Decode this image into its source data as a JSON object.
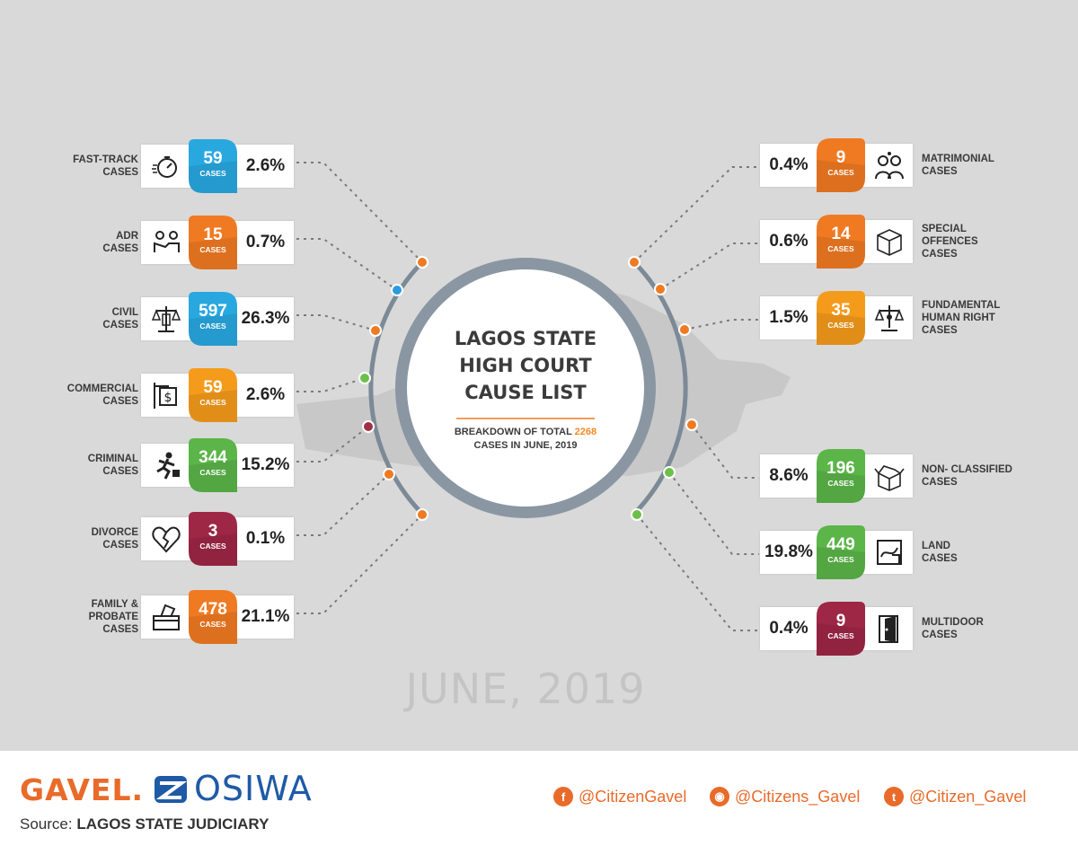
{
  "title": "LAGOS STATE HIGH COURT CAUSE LIST",
  "title_lines": [
    "LAGOS STATE",
    "HIGH COURT",
    "CAUSE LIST"
  ],
  "subtitle_prefix": "BREAKDOWN OF TOTAL ",
  "subtitle_total": "2268",
  "subtitle_suffix": "CASES IN JUNE, 2019",
  "month_label": "JUNE, 2019",
  "cases_unit": "CASES",
  "colors": {
    "blue": "#29a8e0",
    "orange": "#f07a22",
    "amber": "#f59b1c",
    "green": "#5bb548",
    "maroon": "#9e2746",
    "dot_orange": "#f07a22",
    "dot_blue": "#2d9be0",
    "dot_green": "#6cc04a",
    "dot_maroon": "#a03048"
  },
  "chart_data": {
    "type": "table",
    "title": "LAGOS STATE HIGH COURT CAUSE LIST",
    "subtitle": "BREAKDOWN OF TOTAL 2268 CASES IN JUNE, 2019",
    "total": 2268,
    "left": [
      {
        "label": "FAST-TRACK\nCASES",
        "value": 59,
        "percent": "2.6%",
        "color": "blue",
        "icon": "stopwatch-icon",
        "dot": "dot_orange"
      },
      {
        "label": "ADR\nCASES",
        "value": 15,
        "percent": "0.7%",
        "color": "orange",
        "icon": "handshake-icon",
        "dot": "dot_blue"
      },
      {
        "label": "CIVIL\nCASES",
        "value": 597,
        "percent": "26.3%",
        "color": "blue",
        "icon": "scales-icon",
        "dot": "dot_orange"
      },
      {
        "label": "COMMERCIAL\nCASES",
        "value": 59,
        "percent": "2.6%",
        "color": "amber",
        "icon": "dollar-sign-icon",
        "dot": "dot_green"
      },
      {
        "label": "CRIMINAL\nCASES",
        "value": 344,
        "percent": "15.2%",
        "color": "green",
        "icon": "running-thief-icon",
        "dot": "dot_maroon"
      },
      {
        "label": "DIVORCE\nCASES",
        "value": 3,
        "percent": "0.1%",
        "color": "maroon",
        "icon": "broken-heart-icon",
        "dot": "dot_orange"
      },
      {
        "label": "FAMILY &\nPROBATE\nCASES",
        "value": 478,
        "percent": "21.1%",
        "color": "orange",
        "icon": "ballot-box-icon",
        "dot": "dot_orange"
      }
    ],
    "right": [
      {
        "label": "MATRIMONIAL\nCASES",
        "value": 9,
        "percent": "0.4%",
        "color": "orange",
        "icon": "couple-icon",
        "dot": "dot_orange"
      },
      {
        "label": "SPECIAL\nOFFENCES\nCASES",
        "value": 14,
        "percent": "0.6%",
        "color": "orange",
        "icon": "package-icon",
        "dot": "dot_orange"
      },
      {
        "label": "FUNDAMENTAL\nHUMAN RIGHT\nCASES",
        "value": 35,
        "percent": "1.5%",
        "color": "amber",
        "icon": "justice-scale-icon",
        "dot": "dot_orange"
      },
      {
        "label": "NON- CLASSIFIED\nCASES",
        "value": 196,
        "percent": "8.6%",
        "color": "green",
        "icon": "open-box-icon",
        "dot": "dot_orange"
      },
      {
        "label": "LAND\nCASES",
        "value": 449,
        "percent": "19.8%",
        "color": "green",
        "icon": "land-map-icon",
        "dot": "dot_green"
      },
      {
        "label": "MULTIDOOR\nCASES",
        "value": 9,
        "percent": "0.4%",
        "color": "maroon",
        "icon": "door-icon",
        "dot": "dot_green"
      }
    ]
  },
  "footer": {
    "brand_gavel": "GAVEL.",
    "brand_osiwa": "OSIWA",
    "source_label": "Source:",
    "source_value": "LAGOS STATE JUDICIARY",
    "facebook": "@CitizenGavel",
    "instagram": "@Citizens_Gavel",
    "twitter": "@Citizen_Gavel",
    "facebook_icon": "facebook-icon",
    "instagram_icon": "instagram-icon",
    "twitter_icon": "twitter-icon"
  }
}
